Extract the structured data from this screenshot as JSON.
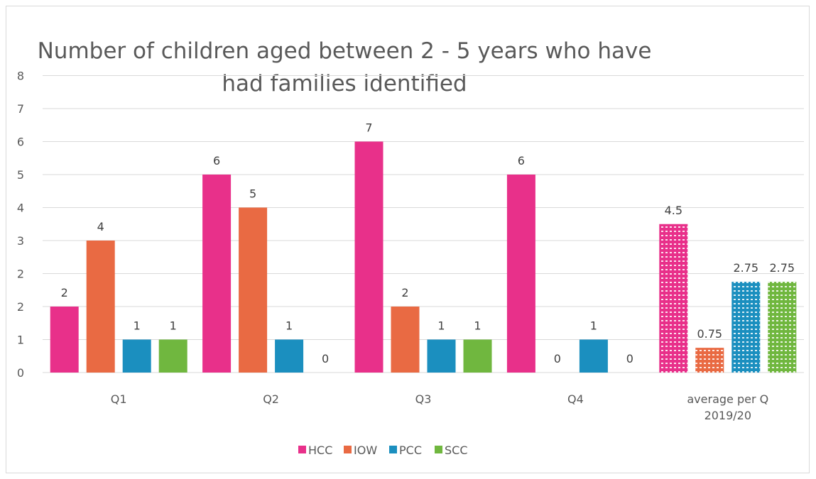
{
  "chart_data": {
    "type": "bar",
    "title": "Number of children aged between 2 - 5 years who have had families identified",
    "title_lines": [
      "Number of children aged between 2 - 5 years who have",
      "had families identified"
    ],
    "categories": [
      "Q1",
      "Q2",
      "Q3",
      "Q4",
      "average per Q 2019/20"
    ],
    "category_lines": [
      [
        "Q1"
      ],
      [
        "Q2"
      ],
      [
        "Q3"
      ],
      [
        "Q4"
      ],
      [
        "average per Q",
        "2019/20"
      ]
    ],
    "yticks": [
      "0",
      "1",
      "2",
      "2",
      "3",
      "4",
      "5",
      "6",
      "7",
      "8"
    ],
    "ylim": [
      0,
      8
    ],
    "grid": true,
    "legend_position": "bottom",
    "patterned_categories": [
      "average per Q 2019/20"
    ],
    "series": [
      {
        "name": "HCC",
        "color": "#e8308a",
        "values": [
          2,
          6,
          7,
          6,
          4.5
        ],
        "labels": [
          "2",
          "6",
          "7",
          "6",
          "4.5"
        ]
      },
      {
        "name": "IOW",
        "color": "#e96a43",
        "values": [
          4,
          5,
          2,
          0,
          0.75
        ],
        "labels": [
          "4",
          "5",
          "2",
          "0",
          "0.75"
        ]
      },
      {
        "name": "PCC",
        "color": "#1b8fbf",
        "values": [
          1,
          1,
          1,
          1,
          2.75
        ],
        "labels": [
          "1",
          "1",
          "1",
          "1",
          "2.75"
        ]
      },
      {
        "name": "SCC",
        "color": "#70b73f",
        "values": [
          1,
          0,
          1,
          0,
          2.75
        ],
        "labels": [
          "1",
          "0",
          "1",
          "0",
          "2.75"
        ]
      }
    ]
  }
}
